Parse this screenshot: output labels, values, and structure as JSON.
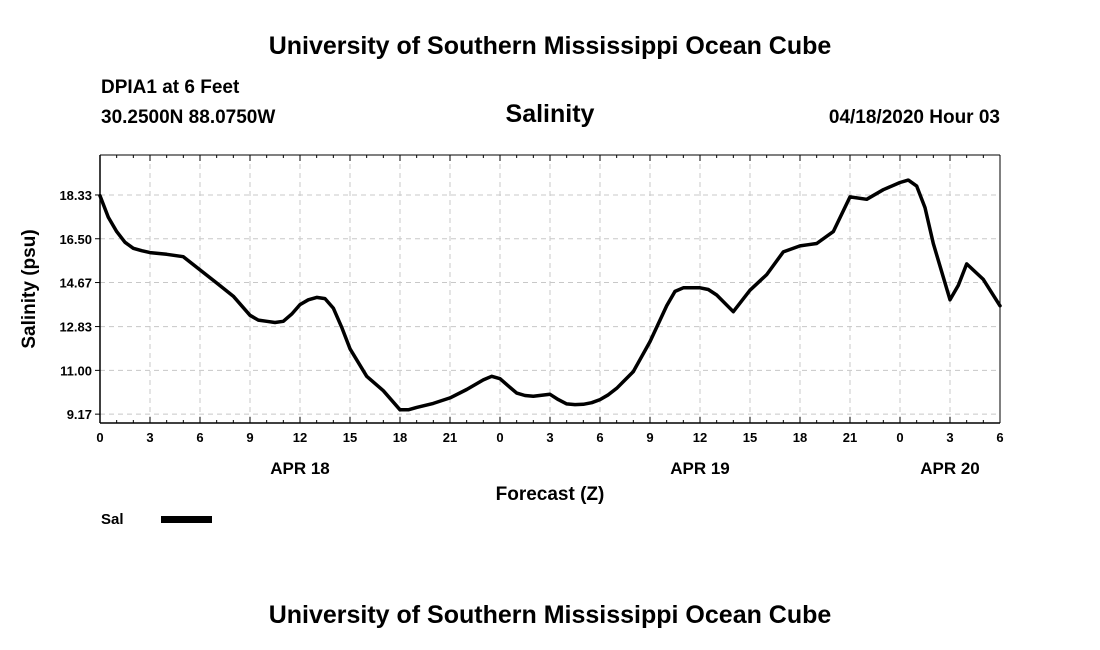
{
  "header": {
    "top_title": "University of Southern Mississippi Ocean Cube",
    "station": "DPIA1 at 6 Feet",
    "coords": "30.2500N 88.0750W",
    "variable": "Salinity",
    "datetime": "04/18/2020 Hour 03"
  },
  "footer": {
    "bottom_title": "University of Southern Mississippi Ocean Cube"
  },
  "legend": {
    "label": "Sal",
    "color": "#000000"
  },
  "chart_data": {
    "type": "line",
    "title": "Salinity",
    "xlabel": "Forecast (Z)",
    "ylabel": "Salinity (psu)",
    "xlim": [
      0,
      54
    ],
    "ylim": [
      8.8,
      20.0
    ],
    "grid": true,
    "y_ticks": [
      {
        "value": 9.17,
        "label": "9.17"
      },
      {
        "value": 11.0,
        "label": "11.00"
      },
      {
        "value": 12.83,
        "label": "12.83"
      },
      {
        "value": 14.67,
        "label": "14.67"
      },
      {
        "value": 16.5,
        "label": "16.50"
      },
      {
        "value": 18.33,
        "label": "18.33"
      }
    ],
    "x_ticks": [
      {
        "value": 0,
        "label": "0"
      },
      {
        "value": 3,
        "label": "3"
      },
      {
        "value": 6,
        "label": "6"
      },
      {
        "value": 9,
        "label": "9"
      },
      {
        "value": 12,
        "label": "12"
      },
      {
        "value": 15,
        "label": "15"
      },
      {
        "value": 18,
        "label": "18"
      },
      {
        "value": 21,
        "label": "21"
      },
      {
        "value": 24,
        "label": "0"
      },
      {
        "value": 27,
        "label": "3"
      },
      {
        "value": 30,
        "label": "6"
      },
      {
        "value": 33,
        "label": "9"
      },
      {
        "value": 36,
        "label": "12"
      },
      {
        "value": 39,
        "label": "15"
      },
      {
        "value": 42,
        "label": "18"
      },
      {
        "value": 45,
        "label": "21"
      },
      {
        "value": 48,
        "label": "0"
      },
      {
        "value": 51,
        "label": "3"
      },
      {
        "value": 54,
        "label": "6"
      }
    ],
    "date_labels": [
      {
        "value": 12,
        "label": "APR 18"
      },
      {
        "value": 36,
        "label": "APR 19"
      },
      {
        "value": 51,
        "label": "APR 20"
      }
    ],
    "series": [
      {
        "name": "Sal",
        "x": [
          0,
          0.5,
          1,
          1.5,
          2,
          2.5,
          3,
          4,
          5,
          6,
          7,
          8,
          9,
          9.5,
          10,
          10.5,
          11,
          11.5,
          12,
          12.5,
          13,
          13.5,
          14,
          14.5,
          15,
          16,
          17,
          18,
          18.5,
          19,
          20,
          21,
          22,
          23,
          23.5,
          24,
          24.5,
          25,
          25.5,
          26,
          27,
          27.5,
          28,
          28.5,
          29,
          29.5,
          30,
          30.5,
          31,
          32,
          33,
          34,
          34.5,
          35,
          36,
          36.5,
          37,
          38,
          39,
          40,
          41,
          42,
          42.5,
          43,
          44,
          45,
          46,
          47,
          48,
          48.5,
          49,
          49.5,
          50,
          51,
          51.5,
          52,
          53,
          54
        ],
        "values": [
          18.3,
          17.4,
          16.8,
          16.35,
          16.1,
          16.0,
          15.92,
          15.85,
          15.75,
          15.2,
          14.65,
          14.1,
          13.3,
          13.1,
          13.05,
          13.0,
          13.05,
          13.35,
          13.75,
          13.95,
          14.05,
          14.0,
          13.6,
          12.8,
          11.9,
          10.75,
          10.15,
          9.35,
          9.35,
          9.45,
          9.62,
          9.85,
          10.2,
          10.6,
          10.75,
          10.65,
          10.35,
          10.05,
          9.95,
          9.92,
          10.0,
          9.78,
          9.6,
          9.57,
          9.58,
          9.65,
          9.78,
          9.98,
          10.25,
          10.95,
          12.2,
          13.7,
          14.3,
          14.45,
          14.45,
          14.38,
          14.15,
          13.45,
          14.35,
          15.0,
          15.95,
          16.2,
          16.25,
          16.3,
          16.8,
          18.25,
          18.15,
          18.55,
          18.85,
          18.95,
          18.7,
          17.8,
          16.3,
          13.95,
          14.55,
          15.45,
          14.8,
          13.7
        ]
      }
    ]
  }
}
